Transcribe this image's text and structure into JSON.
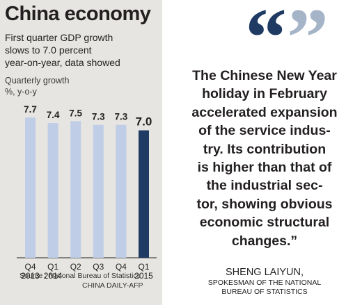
{
  "chart_data": {
    "type": "bar",
    "title": "China economy",
    "subtitle": "First quarter GDP growth\nslows to 7.0 percent\nyear-on-year, data showed",
    "ylabel": "Quarterly growth\n%, y-o-y",
    "xlabel": "",
    "categories": [
      "Q4\n2013",
      "Q1\n2014",
      "Q2",
      "Q3",
      "Q4",
      "Q1\n2015"
    ],
    "values": [
      7.7,
      7.4,
      7.5,
      7.3,
      7.3,
      7.0
    ],
    "data_labels": [
      "7.7",
      "7.4",
      "7.5",
      "7.3",
      "7.3",
      "7.0"
    ],
    "ylim": [
      0,
      7.9
    ],
    "grid": false,
    "colors": {
      "bar": "#bfcde6",
      "highlight_bar": "#1f3a63",
      "background": "#e6e5e1"
    },
    "highlight_index": 5
  },
  "source": "Source : National Bureau of Statistics",
  "credit": "CHINA DAILY-AFP",
  "quote": {
    "text": "The Chinese New Year\nholiday in February\naccelerated expansion\nof the service indus-\ntry. Its contribution\nis higher than that of\nthe industrial sec-\ntor, showing obvious\neconomic structural\nchanges.”",
    "open_mark": "“",
    "close_mark": "”",
    "mark_colors": [
      "#1f3a63",
      "#a6b4c8"
    ],
    "speaker_name": "SHENG LAIYUN,",
    "speaker_title": "SPOKESMAN OF THE NATIONAL\nBUREAU OF STATISTICS"
  }
}
